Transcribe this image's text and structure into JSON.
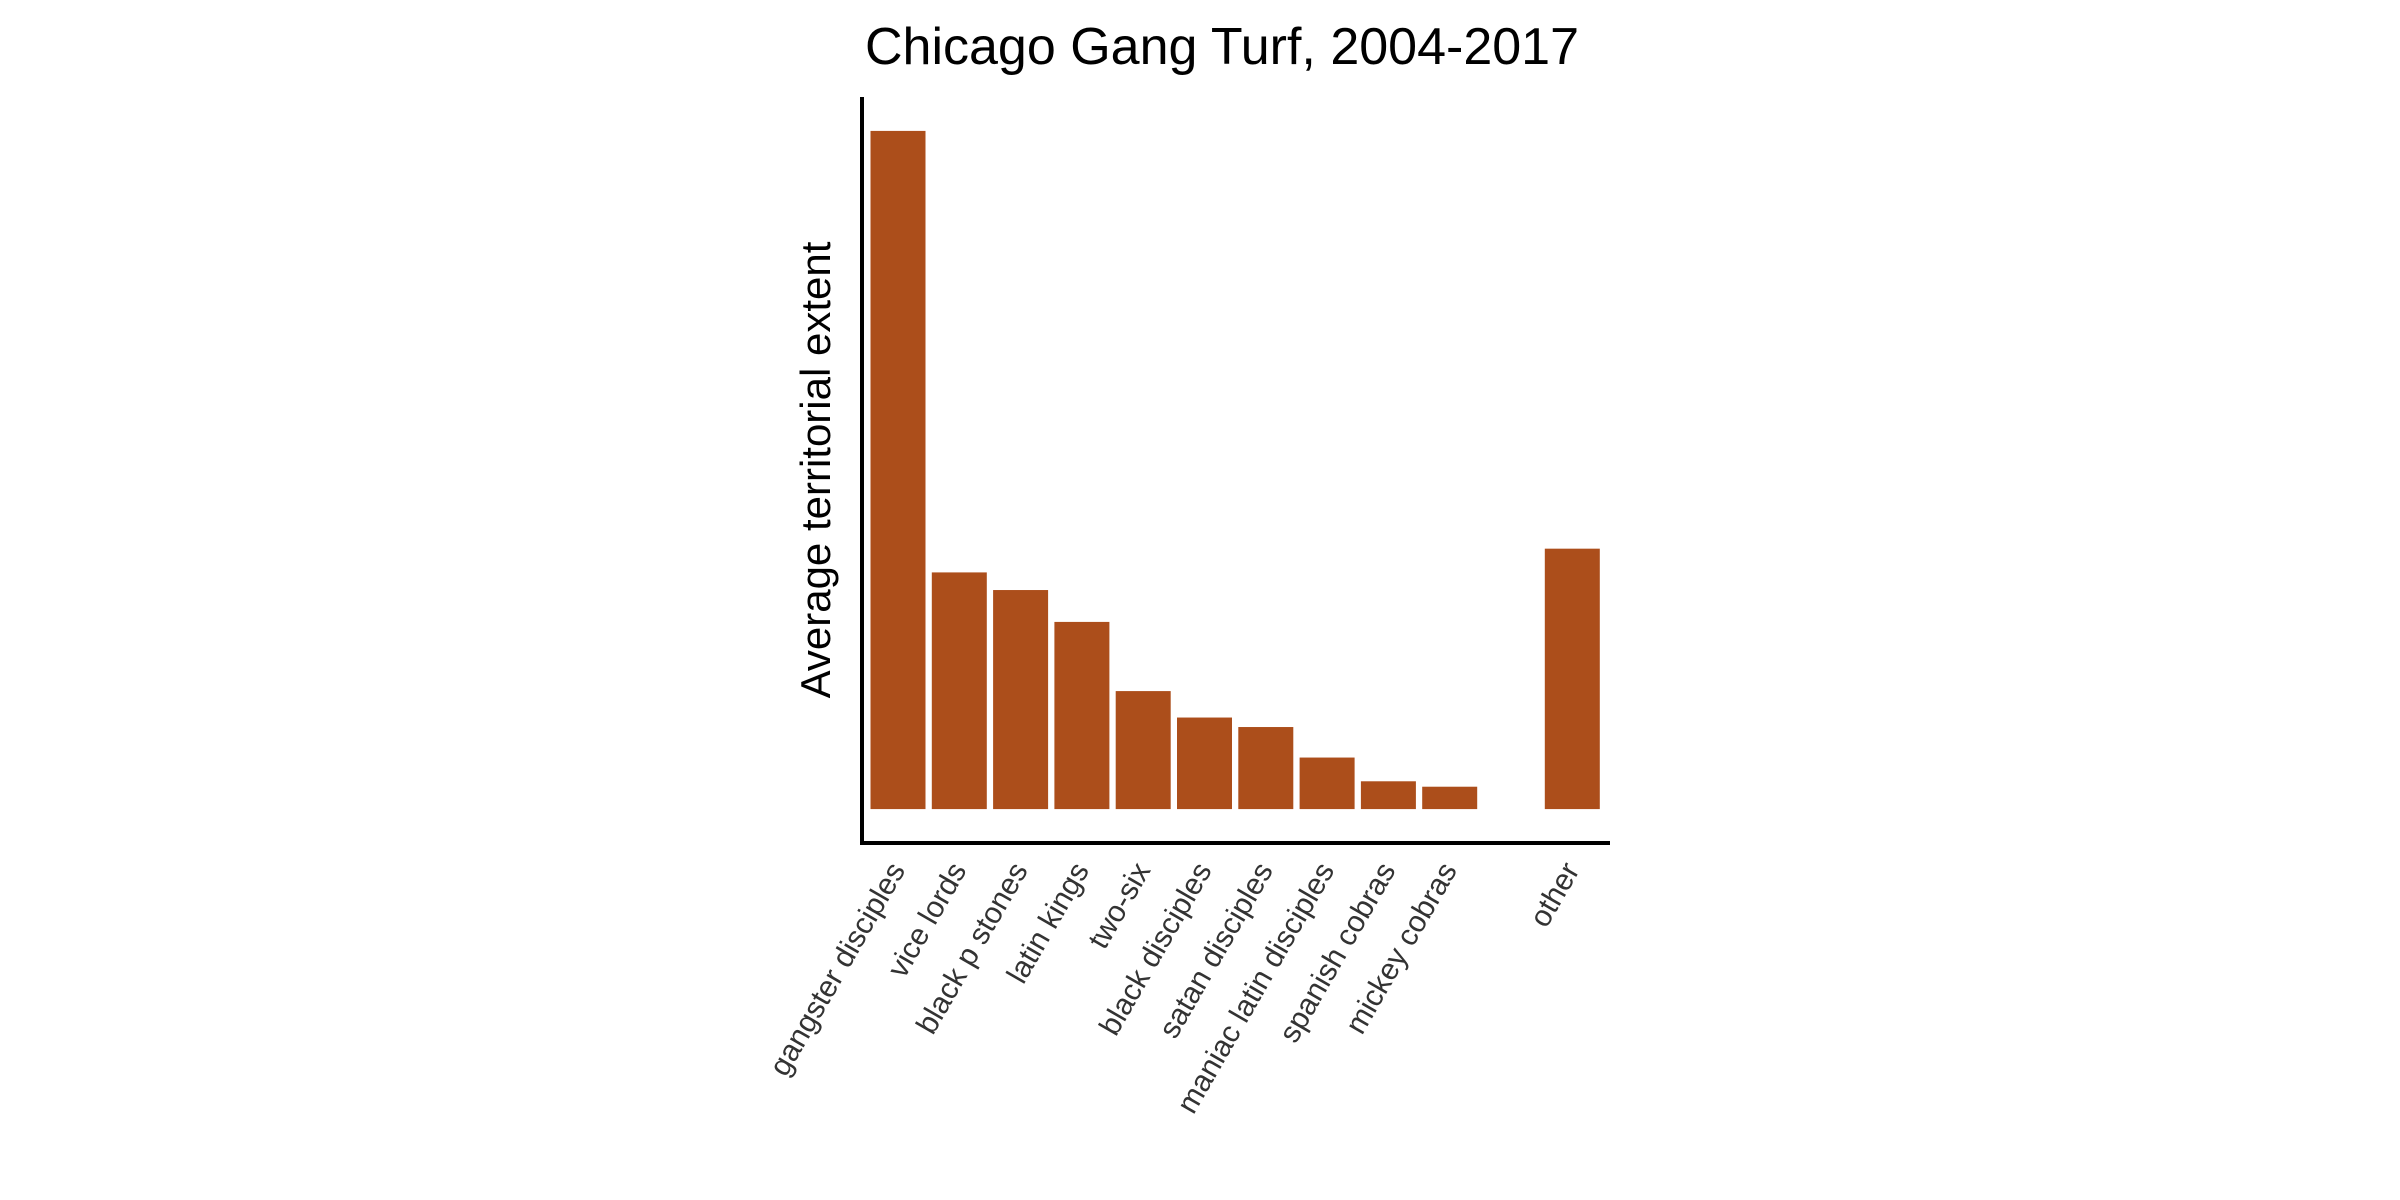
{
  "chart_data": {
    "type": "bar",
    "title": "Chicago Gang Turf, 2004-2017",
    "xlabel": "",
    "ylabel": "Average territorial extent",
    "categories": [
      "gangster disciples",
      "vice lords",
      "black p stones",
      "latin kings",
      "two-six",
      "black disciples",
      "satan disciples",
      "maniac latin disciples",
      "spanish cobras",
      "mickey cobras",
      "",
      "other"
    ],
    "values": [
      100,
      34.9,
      32.3,
      27.6,
      17.4,
      13.5,
      12.1,
      7.6,
      4.1,
      3.3,
      null,
      38.4
    ],
    "ylim": [
      -5,
      105
    ],
    "grid": false,
    "y_ticks_shown": false,
    "bar_color": "#AC4E1B"
  }
}
